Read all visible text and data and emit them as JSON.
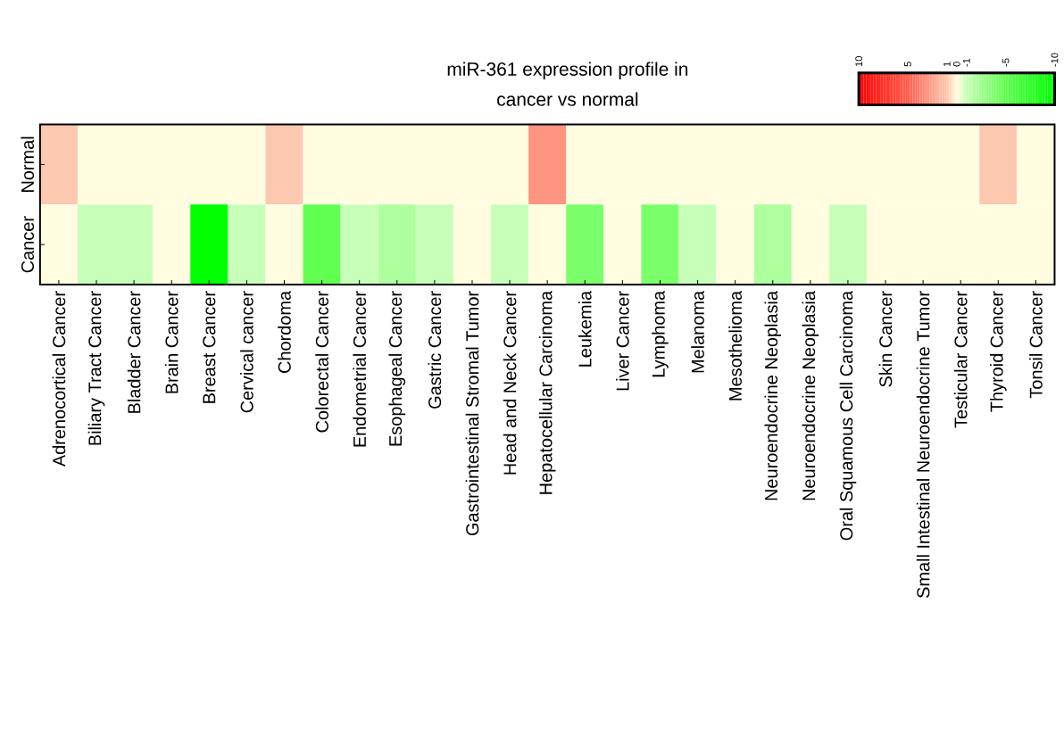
{
  "chart_data": {
    "type": "heatmap",
    "title": "miR-361 expression profile in\ncancer vs normal",
    "categories": [
      "Adrenocortical Cancer",
      "Biliary Tract Cancer",
      "Bladder Cancer",
      "Brain Cancer",
      "Breast Cancer",
      "Cervical cancer",
      "Chordoma",
      "Colorectal Cancer",
      "Endometrial Cancer",
      "Esophageal Cancer",
      "Gastric Cancer",
      "Gastrointestinal  Stromal Tumor",
      "Head and Neck Cancer",
      "Hepatocellular  Carcinoma",
      "Leukemia",
      "Liver Cancer",
      "Lymphoma",
      "Melanoma",
      "Mesothelioma",
      "Neuroendocrine Neoplasia",
      "Neuroendocrine Neoplasia",
      "Oral Squamous Cell Carcinoma",
      "Skin Cancer",
      "Small Intestinal Neuroendocrine Tumor",
      "Testicular Cancer",
      "Thyroid Cancer",
      "Tonsil Cancer"
    ],
    "y_categories": [
      "Normal",
      "Cancer"
    ],
    "cells": [
      [
        1,
        0,
        0,
        0,
        0,
        0,
        1,
        0,
        0,
        0,
        0,
        0,
        0,
        3,
        0,
        0,
        0,
        0,
        0,
        0,
        0,
        0,
        0,
        0,
        0,
        1,
        0
      ],
      [
        0,
        -1,
        -1,
        0,
        -10,
        -1,
        0,
        -5,
        -1,
        -2,
        -1,
        0,
        -1,
        0,
        -4,
        0,
        -4,
        -1,
        0,
        -2,
        0,
        -1,
        0,
        0,
        0,
        0,
        0
      ]
    ],
    "clim": [
      10,
      -10
    ],
    "cticks": [
      10,
      5,
      1,
      0,
      -1,
      -5,
      -10
    ]
  }
}
